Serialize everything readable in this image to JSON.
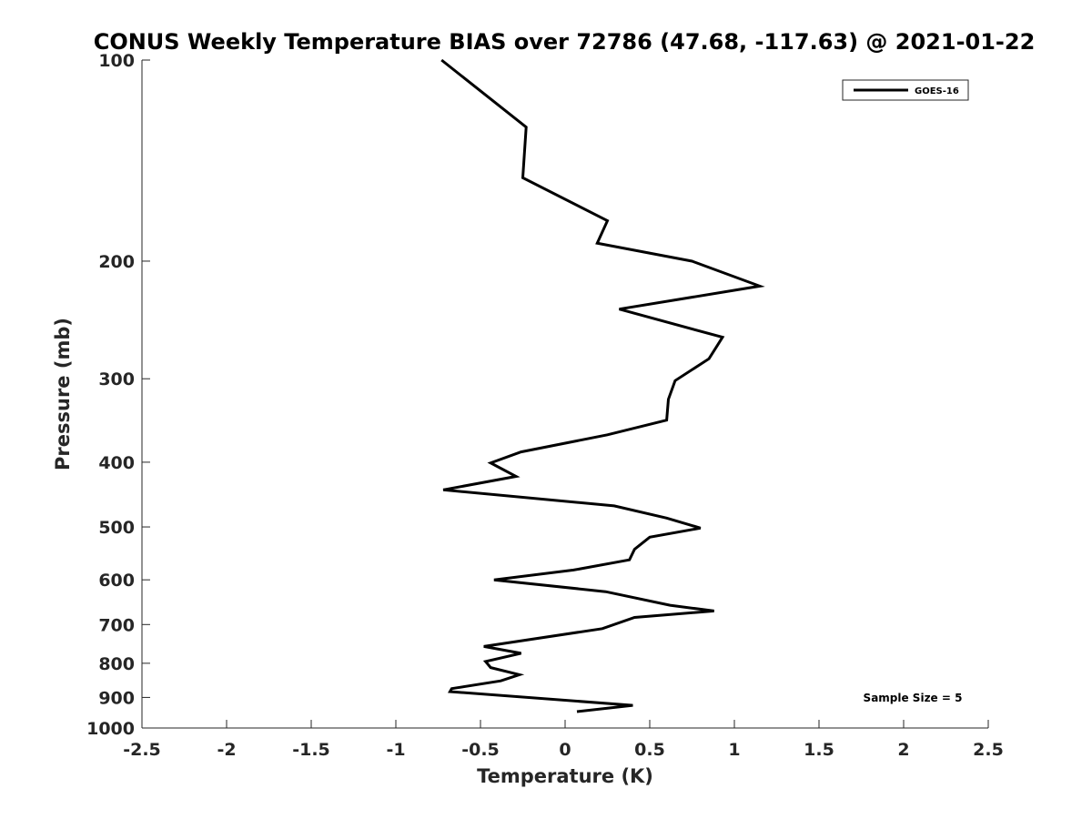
{
  "chart_data": {
    "type": "line",
    "title": "CONUS Weekly Temperature BIAS over 72786 (47.68, -117.63) @ 2021-01-22",
    "xlabel": "Temperature (K)",
    "ylabel": "Pressure (mb)",
    "xlim": [
      -2.5,
      2.5
    ],
    "ylim": [
      100,
      1000
    ],
    "y_scale": "log",
    "y_reversed": true,
    "grid": false,
    "x_ticks": [
      -2.5,
      -2,
      -1.5,
      -1,
      -0.5,
      0,
      0.5,
      1,
      1.5,
      2,
      2.5
    ],
    "x_tick_labels": [
      "-2.5",
      "-2",
      "-1.5",
      "-1",
      "-0.5",
      "0",
      "0.5",
      "1",
      "1.5",
      "2",
      "2.5"
    ],
    "y_ticks": [
      100,
      200,
      300,
      400,
      500,
      600,
      700,
      800,
      900,
      1000
    ],
    "y_tick_labels": [
      "100",
      "200",
      "300",
      "400",
      "500",
      "600",
      "700",
      "800",
      "900",
      "1000"
    ],
    "legend_position": "top-right",
    "annotation": "Sample Size = 5",
    "series": [
      {
        "name": "GOES-16",
        "color": "#000000",
        "points": [
          {
            "x": -0.73,
            "p": 100
          },
          {
            "x": -0.23,
            "p": 126
          },
          {
            "x": -0.25,
            "p": 150
          },
          {
            "x": 0.25,
            "p": 174
          },
          {
            "x": 0.19,
            "p": 188
          },
          {
            "x": 0.75,
            "p": 200
          },
          {
            "x": 1.15,
            "p": 218
          },
          {
            "x": 0.32,
            "p": 236
          },
          {
            "x": 0.93,
            "p": 260
          },
          {
            "x": 0.85,
            "p": 280
          },
          {
            "x": 0.65,
            "p": 302
          },
          {
            "x": 0.61,
            "p": 322
          },
          {
            "x": 0.6,
            "p": 346
          },
          {
            "x": 0.25,
            "p": 364
          },
          {
            "x": -0.26,
            "p": 386
          },
          {
            "x": -0.44,
            "p": 401
          },
          {
            "x": -0.29,
            "p": 420
          },
          {
            "x": -0.72,
            "p": 440
          },
          {
            "x": 0.29,
            "p": 465
          },
          {
            "x": 0.6,
            "p": 485
          },
          {
            "x": 0.8,
            "p": 502
          },
          {
            "x": 0.5,
            "p": 518
          },
          {
            "x": 0.41,
            "p": 540
          },
          {
            "x": 0.38,
            "p": 560
          },
          {
            "x": 0.05,
            "p": 580
          },
          {
            "x": -0.42,
            "p": 600
          },
          {
            "x": 0.24,
            "p": 625
          },
          {
            "x": 0.62,
            "p": 655
          },
          {
            "x": 0.88,
            "p": 668
          },
          {
            "x": 0.41,
            "p": 683
          },
          {
            "x": 0.22,
            "p": 710
          },
          {
            "x": -0.48,
            "p": 755
          },
          {
            "x": -0.26,
            "p": 773
          },
          {
            "x": -0.47,
            "p": 795
          },
          {
            "x": -0.44,
            "p": 812
          },
          {
            "x": -0.27,
            "p": 832
          },
          {
            "x": -0.38,
            "p": 850
          },
          {
            "x": -0.67,
            "p": 873
          },
          {
            "x": -0.68,
            "p": 882
          },
          {
            "x": 0.4,
            "p": 925
          },
          {
            "x": 0.07,
            "p": 945
          }
        ]
      }
    ]
  }
}
